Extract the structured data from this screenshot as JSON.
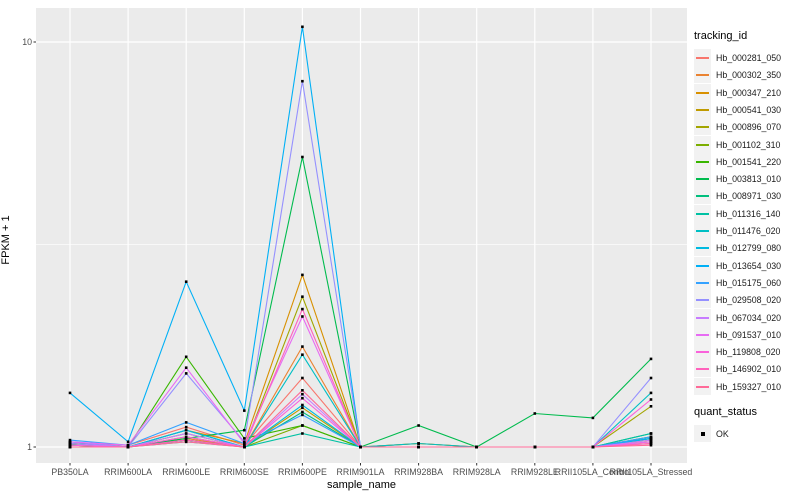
{
  "chart_data": {
    "type": "line",
    "title": "",
    "xlabel": "sample_name",
    "ylabel": "FPKM + 1",
    "y_scale": "log10",
    "y_ticks": [
      1,
      10
    ],
    "y_minor_gridlines": [
      3.162
    ],
    "ylim": [
      0.91,
      12.1
    ],
    "grid": true,
    "legend_position": "right",
    "panel_bg": "#EBEBEB",
    "grid_color": "#FFFFFF",
    "axis_text_color": "#4D4D4D",
    "marker_color": "#000000",
    "legend_key_bg": "#F2F2F2",
    "categories": [
      "PB350LA",
      "RRIM600LA",
      "RRIM600LE",
      "RRIM600SE",
      "RRIM600PE",
      "RRIM901LA",
      "RRIM928BA",
      "RRIM928LA",
      "RRIM928LE",
      "RRII105LA_Control",
      "RRII105LA_Stressed"
    ],
    "series": [
      {
        "name": "Hb_000281_050",
        "color": "#F8766D",
        "values": [
          1.02,
          1.01,
          1.12,
          1.01,
          1.48,
          1.0,
          1.0,
          1.0,
          1.0,
          1.0,
          1.02
        ]
      },
      {
        "name": "Hb_000302_350",
        "color": "#EA8331",
        "values": [
          1.0,
          1.0,
          1.05,
          1.0,
          1.77,
          1.0,
          1.02,
          1.0,
          1.0,
          1.0,
          1.03
        ]
      },
      {
        "name": "Hb_000347_210",
        "color": "#D89000",
        "values": [
          1.01,
          1.0,
          1.1,
          1.02,
          2.66,
          1.0,
          1.02,
          1.0,
          1.0,
          1.0,
          1.05
        ]
      },
      {
        "name": "Hb_000541_030",
        "color": "#C09B00",
        "values": [
          1.0,
          1.0,
          1.04,
          1.0,
          1.25,
          1.0,
          1.0,
          1.0,
          1.0,
          1.0,
          1.04
        ]
      },
      {
        "name": "Hb_000896_070",
        "color": "#A3A500",
        "values": [
          1.0,
          1.0,
          1.06,
          1.0,
          2.35,
          1.0,
          1.0,
          1.0,
          1.0,
          1.0,
          1.26
        ]
      },
      {
        "name": "Hb_001102_310",
        "color": "#7CAE00",
        "values": [
          1.01,
          1.0,
          1.08,
          1.0,
          1.13,
          1.0,
          1.0,
          1.0,
          1.0,
          1.0,
          1.05
        ]
      },
      {
        "name": "Hb_001541_220",
        "color": "#39B600",
        "values": [
          1.02,
          1.0,
          1.67,
          1.05,
          1.13,
          1.0,
          1.0,
          1.0,
          1.0,
          1.0,
          1.06
        ]
      },
      {
        "name": "Hb_003813_010",
        "color": "#00BB4E",
        "values": [
          1.02,
          1.0,
          1.05,
          1.1,
          5.2,
          1.0,
          1.13,
          1.0,
          1.21,
          1.18,
          1.65
        ]
      },
      {
        "name": "Hb_008971_030",
        "color": "#00BF7D",
        "values": [
          1.01,
          1.0,
          1.04,
          1.0,
          1.22,
          1.0,
          1.0,
          1.0,
          1.0,
          1.0,
          1.08
        ]
      },
      {
        "name": "Hb_011316_140",
        "color": "#00C1A3",
        "values": [
          1.0,
          1.0,
          1.03,
          1.0,
          1.08,
          1.0,
          1.0,
          1.0,
          1.0,
          1.0,
          1.08
        ]
      },
      {
        "name": "Hb_011476_020",
        "color": "#00BFC4",
        "values": [
          1.03,
          1.0,
          1.1,
          1.0,
          1.69,
          1.0,
          1.02,
          1.0,
          1.0,
          1.0,
          1.36
        ]
      },
      {
        "name": "Hb_012799_080",
        "color": "#00BAE0",
        "values": [
          1.02,
          1.0,
          1.1,
          1.0,
          1.27,
          1.0,
          1.0,
          1.0,
          1.0,
          1.0,
          1.05
        ]
      },
      {
        "name": "Hb_013654_030",
        "color": "#00B0F6",
        "values": [
          1.36,
          1.03,
          2.56,
          1.23,
          10.9,
          1.0,
          1.0,
          1.0,
          1.0,
          1.0,
          1.05
        ]
      },
      {
        "name": "Hb_015175_060",
        "color": "#35A2FF",
        "values": [
          1.04,
          1.01,
          1.15,
          1.02,
          1.2,
          1.0,
          1.0,
          1.0,
          1.0,
          1.0,
          1.06
        ]
      },
      {
        "name": "Hb_029508_020",
        "color": "#9590FF",
        "values": [
          1.03,
          1.0,
          1.52,
          1.03,
          8.0,
          1.0,
          1.0,
          1.0,
          1.0,
          1.0,
          1.48
        ]
      },
      {
        "name": "Hb_067034_020",
        "color": "#C77CFF",
        "values": [
          1.02,
          1.0,
          1.08,
          1.0,
          1.35,
          1.0,
          1.0,
          1.0,
          1.0,
          1.0,
          1.04
        ]
      },
      {
        "name": "Hb_091537_010",
        "color": "#E76BF3",
        "values": [
          1.03,
          1.01,
          1.57,
          1.02,
          2.1,
          1.0,
          1.0,
          1.0,
          1.0,
          1.0,
          1.03
        ]
      },
      {
        "name": "Hb_119808_020",
        "color": "#FA62DB",
        "values": [
          1.01,
          1.0,
          1.06,
          1.0,
          1.32,
          1.0,
          1.0,
          1.0,
          1.0,
          1.0,
          1.31
        ]
      },
      {
        "name": "Hb_146902_010",
        "color": "#FF62BC",
        "values": [
          1.0,
          1.0,
          1.04,
          1.0,
          2.19,
          1.0,
          1.0,
          1.0,
          1.0,
          1.0,
          1.02
        ]
      },
      {
        "name": "Hb_159327_010",
        "color": "#FF6A98",
        "values": [
          1.0,
          1.0,
          1.03,
          1.0,
          1.38,
          1.0,
          1.0,
          1.0,
          1.0,
          1.0,
          1.01
        ]
      }
    ],
    "legend": {
      "title": "tracking_id"
    },
    "legend2": {
      "title": "quant_status",
      "items": [
        {
          "label": "OK",
          "marker": "black-square"
        }
      ]
    }
  }
}
